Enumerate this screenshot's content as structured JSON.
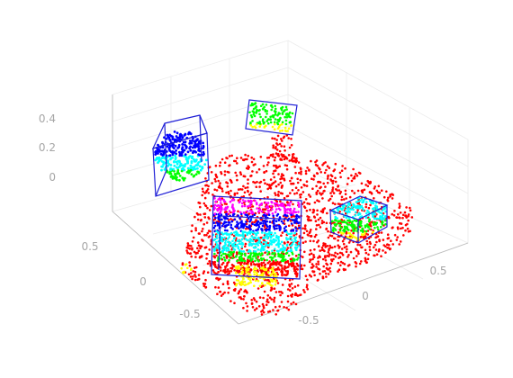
{
  "chart_data": {
    "type": "scatter",
    "title": "",
    "xlabel": "",
    "ylabel": "",
    "zlabel": "",
    "view": "3d-isometric",
    "grid": true,
    "legend": "none",
    "x_ticks": [
      "0.5",
      "0",
      "-0.5"
    ],
    "y_ticks": [
      "-0.5",
      "0",
      "0.5"
    ],
    "z_ticks": [
      "0.4",
      "0.2",
      "0"
    ],
    "background_color": "#ff0000",
    "point_colormap": [
      "#0000ff",
      "#00ffff",
      "#00ff00",
      "#ffff00",
      "#ff00ff"
    ],
    "box_color": "#1f1fd6",
    "series": [
      {
        "role": "scene-background",
        "color": "#ff0000"
      },
      {
        "role": "sphere",
        "colors": [
          "#0000ff",
          "#00ffff",
          "#00ff00"
        ]
      },
      {
        "role": "upper-plane",
        "colors": [
          "#00ff00",
          "#ffff00"
        ]
      },
      {
        "role": "large-box",
        "colors": [
          "#ff00ff",
          "#0000ff",
          "#00ffff",
          "#00ff00"
        ]
      },
      {
        "role": "small-box",
        "colors": [
          "#00ffff",
          "#00ff00",
          "#ffff00"
        ]
      },
      {
        "role": "floor-patch",
        "colors": [
          "#ffff00"
        ]
      }
    ]
  }
}
